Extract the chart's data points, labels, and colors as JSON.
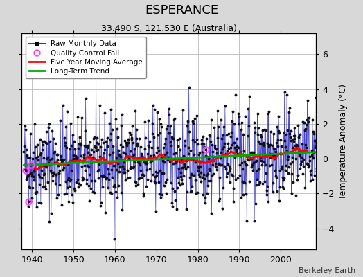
{
  "title": "ESPERANCE",
  "subtitle": "33.490 S, 121.530 E (Australia)",
  "ylabel": "Temperature Anomaly (°C)",
  "credit": "Berkeley Earth",
  "xlim": [
    1937.5,
    2008.5
  ],
  "ylim": [
    -5.2,
    7.2
  ],
  "yticks": [
    -4,
    -2,
    0,
    2,
    4,
    6
  ],
  "xticks": [
    1940,
    1950,
    1960,
    1970,
    1980,
    1990,
    2000
  ],
  "start_year": 1938,
  "end_year": 2008,
  "seed": 42,
  "bg_color": "#d8d8d8",
  "plot_bg_color": "#ffffff",
  "raw_line_color": "#3333cc",
  "raw_fill_color": "#aaaaee",
  "raw_dot_color": "#111111",
  "ma_color": "#ff0000",
  "trend_color": "#00aa00",
  "qc_color": "#ff44ff",
  "legend_bg": "#ffffff",
  "grid_color": "#bbbbbb",
  "title_fontsize": 13,
  "subtitle_fontsize": 9,
  "tick_fontsize": 9,
  "legend_fontsize": 7.5
}
